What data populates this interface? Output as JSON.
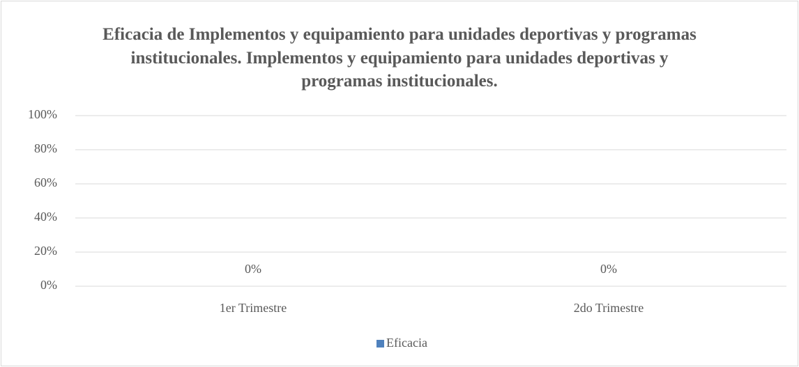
{
  "chart_data": {
    "type": "bar",
    "title": "Eficacia de Implementos y equipamiento para unidades deportivas y programas institucionales. Implementos y equipamiento para unidades deportivas y programas institucionales.",
    "categories": [
      "1er Trimestre",
      "2do Trimestre"
    ],
    "series": [
      {
        "name": "Eficacia",
        "color": "#4f81bd",
        "values": [
          0,
          0
        ],
        "value_labels": [
          "0%",
          "0%"
        ]
      }
    ],
    "ylim": [
      0,
      100
    ],
    "yticks": [
      {
        "value": 0,
        "label": "0%"
      },
      {
        "value": 20,
        "label": "20%"
      },
      {
        "value": 40,
        "label": "40%"
      },
      {
        "value": 60,
        "label": "60%"
      },
      {
        "value": 80,
        "label": "80%"
      },
      {
        "value": 100,
        "label": "100%"
      }
    ],
    "grid": true,
    "legend": "bottom"
  }
}
